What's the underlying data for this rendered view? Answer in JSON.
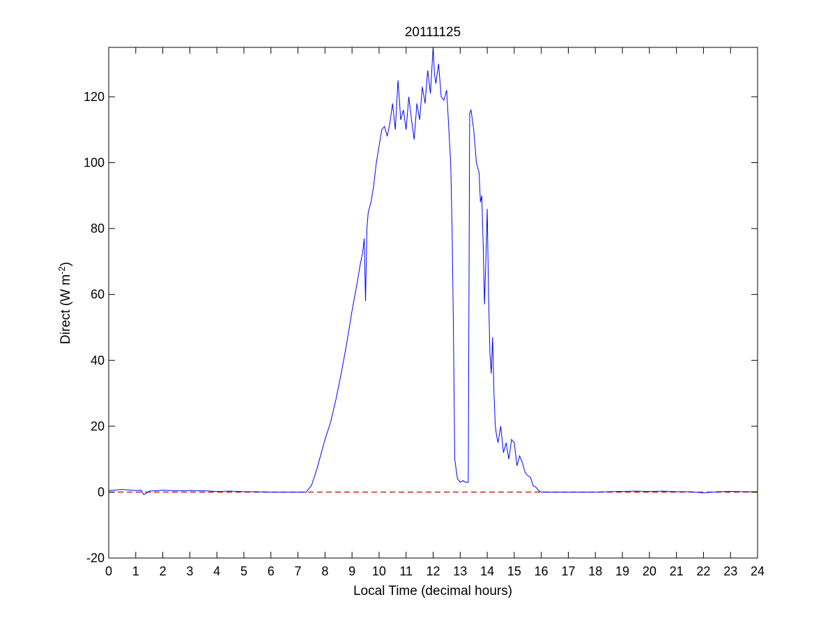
{
  "chart_data": {
    "type": "line",
    "title": "20111125",
    "xlabel": "Local Time (decimal hours)",
    "ylabel": {
      "prefix": "Direct (W m",
      "superscript": "-2",
      "suffix": ")"
    },
    "xlim": [
      0,
      24
    ],
    "ylim": [
      -20,
      135
    ],
    "xticks": [
      0,
      1,
      2,
      3,
      4,
      5,
      6,
      7,
      8,
      9,
      10,
      11,
      12,
      13,
      14,
      15,
      16,
      17,
      18,
      19,
      20,
      21,
      22,
      23,
      24
    ],
    "yticks": [
      -20,
      0,
      20,
      40,
      60,
      80,
      100,
      120
    ],
    "grid": false,
    "legend": "none",
    "series": [
      {
        "color": "#0000ff",
        "x": [
          0,
          0.5,
          1,
          1.2,
          1.3,
          1.5,
          2,
          2.5,
          3,
          3.5,
          4,
          4.5,
          5,
          5.5,
          6,
          6.5,
          7,
          7.3,
          7.5,
          7.7,
          7.9,
          8.0,
          8.2,
          8.4,
          8.6,
          8.8,
          9.0,
          9.2,
          9.3,
          9.4,
          9.45,
          9.5,
          9.55,
          9.6,
          9.7,
          9.8,
          9.9,
          10.0,
          10.1,
          10.2,
          10.3,
          10.4,
          10.5,
          10.6,
          10.7,
          10.8,
          10.9,
          11.0,
          11.1,
          11.2,
          11.3,
          11.4,
          11.5,
          11.6,
          11.7,
          11.8,
          11.9,
          12.0,
          12.05,
          12.1,
          12.2,
          12.3,
          12.4,
          12.5,
          12.55,
          12.6,
          12.65,
          12.7,
          12.75,
          12.8,
          12.9,
          13.0,
          13.1,
          13.2,
          13.3,
          13.35,
          13.4,
          13.5,
          13.6,
          13.7,
          13.75,
          13.8,
          13.85,
          13.9,
          13.95,
          14.0,
          14.05,
          14.1,
          14.15,
          14.2,
          14.25,
          14.3,
          14.35,
          14.4,
          14.5,
          14.6,
          14.7,
          14.8,
          14.9,
          15.0,
          15.1,
          15.2,
          15.3,
          15.4,
          15.5,
          15.6,
          15.7,
          15.8,
          15.9,
          16.0,
          16.1,
          16.5,
          17,
          17.5,
          18,
          18.5,
          19,
          19.5,
          20,
          20.5,
          21,
          21.5,
          22,
          22.5,
          23,
          23.5,
          24
        ],
        "y": [
          0.5,
          0.8,
          0.5,
          0.6,
          -0.8,
          0.3,
          0.6,
          0.4,
          0.5,
          0.4,
          0.2,
          0.3,
          0.1,
          0.1,
          0.0,
          0.0,
          0.0,
          0.0,
          2.0,
          7.0,
          13.0,
          16.0,
          21.0,
          28.0,
          36.0,
          45.0,
          55.0,
          64.0,
          69.0,
          73.0,
          77.0,
          58.0,
          80.0,
          85.0,
          88.0,
          93.0,
          100.0,
          105.0,
          110.0,
          111.0,
          108.0,
          112.0,
          118.0,
          110.0,
          125.0,
          113.0,
          116.0,
          110.0,
          120.0,
          113.0,
          107.0,
          118.0,
          113.0,
          123.0,
          118.0,
          128.0,
          121.0,
          135.0,
          127.0,
          124.0,
          130.0,
          120.0,
          119.0,
          122.0,
          115.0,
          107.0,
          100.0,
          80.0,
          50.0,
          10.0,
          4.0,
          3.0,
          3.5,
          3.0,
          3.0,
          115.0,
          116.0,
          110.0,
          100.0,
          97.0,
          88.0,
          90.0,
          75.0,
          57.0,
          70.0,
          86.0,
          60.0,
          42.0,
          36.0,
          47.0,
          30.0,
          20.0,
          17.0,
          15.0,
          20.0,
          12.0,
          15.0,
          10.0,
          16.0,
          15.0,
          8.0,
          11.0,
          9.0,
          6.0,
          5.0,
          4.5,
          2.0,
          1.5,
          0.5,
          0.0,
          0.0,
          0.0,
          0.0,
          0.0,
          0.0,
          0.1,
          0.2,
          0.3,
          0.2,
          0.3,
          0.1,
          0.1,
          -0.2,
          0.1,
          0.2,
          0.1,
          0.1
        ]
      },
      {
        "color": "#cc0000",
        "dashed": true,
        "x": [
          0,
          24
        ],
        "y": [
          0,
          0
        ]
      }
    ]
  }
}
